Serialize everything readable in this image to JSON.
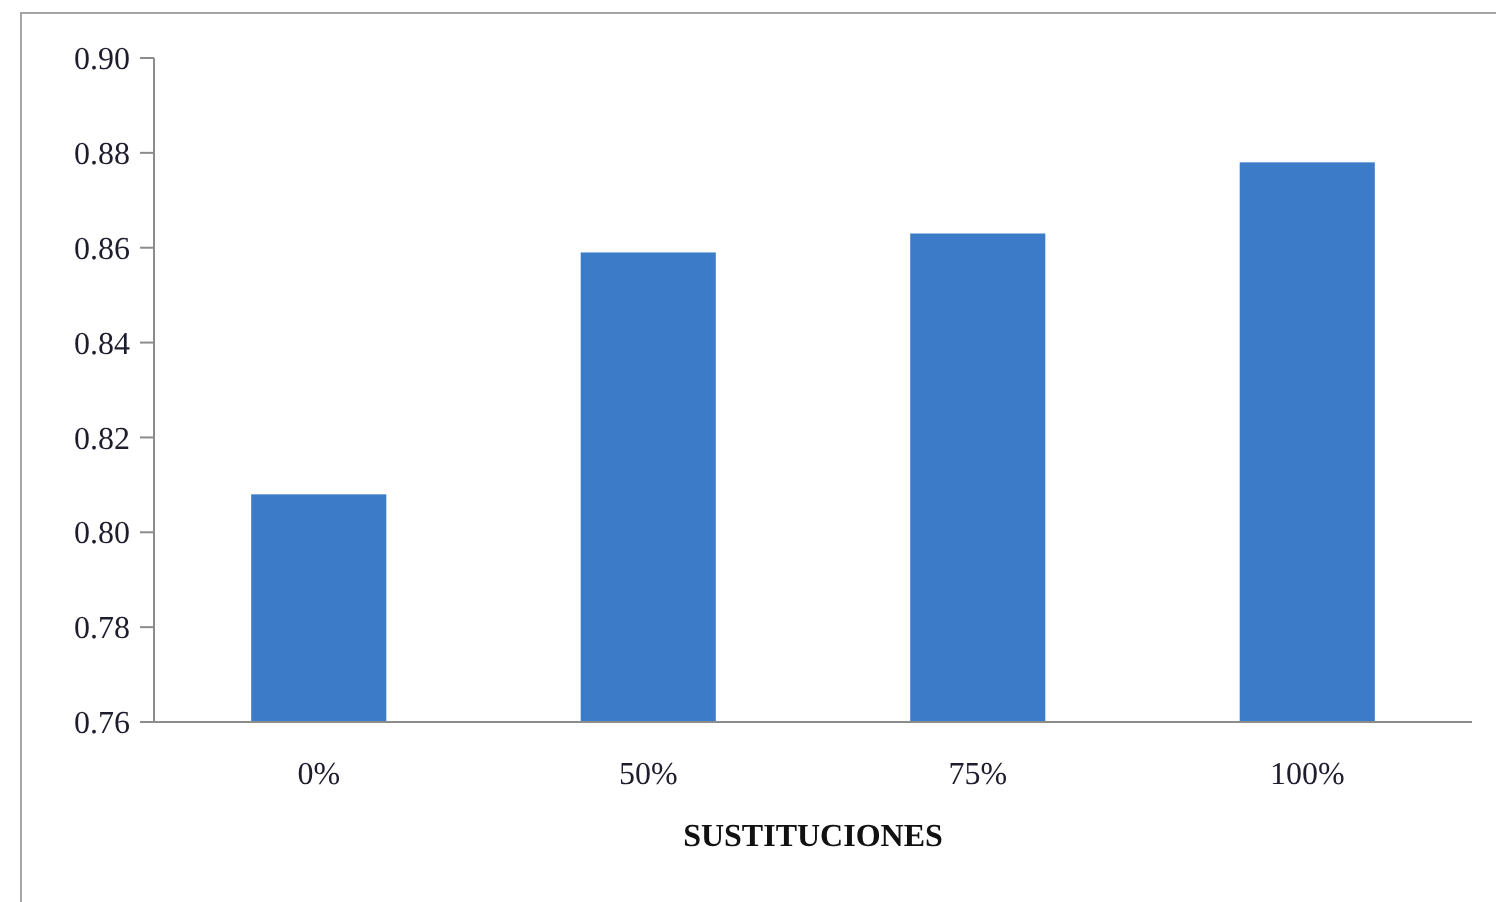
{
  "chart_data": {
    "type": "bar",
    "xlabel": "SUSTITUCIONES",
    "categories": [
      "0%",
      "50%",
      "75%",
      "100%"
    ],
    "values": [
      0.808,
      0.859,
      0.863,
      0.878
    ],
    "color": "#3b7bc8",
    "ylim": [
      0.76,
      0.9
    ],
    "yticks": [
      0.76,
      0.78,
      {
        "value": 0.8,
        "label": "0.80"
      },
      0.82,
      0.84,
      0.86,
      0.88,
      {
        "value": 0.9,
        "label": "0.90"
      }
    ]
  }
}
